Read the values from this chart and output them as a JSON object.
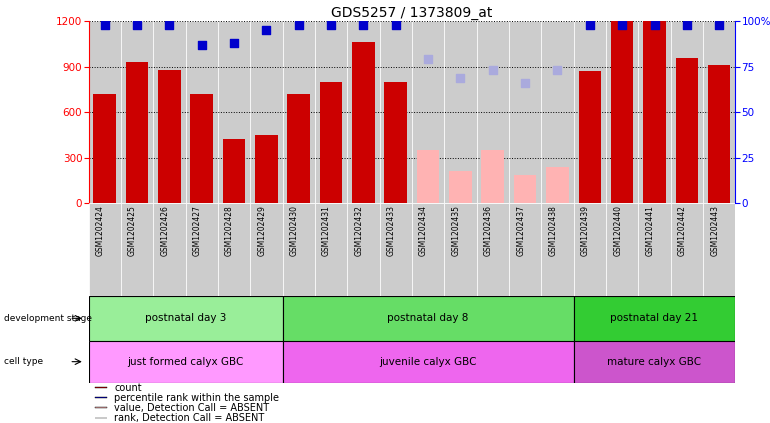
{
  "title": "GDS5257 / 1373809_at",
  "samples": [
    "GSM1202424",
    "GSM1202425",
    "GSM1202426",
    "GSM1202427",
    "GSM1202428",
    "GSM1202429",
    "GSM1202430",
    "GSM1202431",
    "GSM1202432",
    "GSM1202433",
    "GSM1202434",
    "GSM1202435",
    "GSM1202436",
    "GSM1202437",
    "GSM1202438",
    "GSM1202439",
    "GSM1202440",
    "GSM1202441",
    "GSM1202442",
    "GSM1202443"
  ],
  "counts": [
    720,
    930,
    880,
    720,
    420,
    450,
    720,
    800,
    1060,
    800,
    null,
    null,
    null,
    null,
    null,
    870,
    1200,
    1200,
    960,
    910
  ],
  "counts_absent": [
    null,
    null,
    null,
    null,
    null,
    null,
    null,
    null,
    null,
    null,
    350,
    210,
    350,
    185,
    240,
    null,
    null,
    null,
    null,
    null
  ],
  "percentile": [
    98,
    98,
    98,
    87,
    88,
    95,
    98,
    98,
    98,
    98,
    null,
    null,
    null,
    null,
    null,
    98,
    98,
    98,
    98,
    98
  ],
  "percentile_absent": [
    null,
    null,
    null,
    null,
    null,
    null,
    null,
    null,
    null,
    null,
    79,
    69,
    73,
    66,
    73,
    null,
    null,
    null,
    null,
    null
  ],
  "ylim_left": [
    0,
    1200
  ],
  "ylim_right": [
    0,
    100
  ],
  "yticks_left": [
    0,
    300,
    600,
    900,
    1200
  ],
  "yticks_right": [
    0,
    25,
    50,
    75,
    100
  ],
  "ytick_labels_right": [
    "0",
    "25",
    "50",
    "75",
    "100%"
  ],
  "bar_color": "#cc0000",
  "bar_color_absent": "#ffb3b3",
  "dot_color": "#0000cc",
  "dot_color_absent": "#aaaadd",
  "col_bg_color": "#cccccc",
  "dev_groups": [
    {
      "label": "postnatal day 3",
      "start": 0,
      "end": 6,
      "color": "#99ee99"
    },
    {
      "label": "postnatal day 8",
      "start": 6,
      "end": 15,
      "color": "#66dd66"
    },
    {
      "label": "postnatal day 21",
      "start": 15,
      "end": 20,
      "color": "#33cc33"
    }
  ],
  "cell_groups": [
    {
      "label": "just formed calyx GBC",
      "start": 0,
      "end": 6,
      "color": "#ff99ff"
    },
    {
      "label": "juvenile calyx GBC",
      "start": 6,
      "end": 15,
      "color": "#ee66ee"
    },
    {
      "label": "mature calyx GBC",
      "start": 15,
      "end": 20,
      "color": "#cc55cc"
    }
  ],
  "legend_items": [
    {
      "label": "count",
      "color": "#cc0000"
    },
    {
      "label": "percentile rank within the sample",
      "color": "#0000cc"
    },
    {
      "label": "value, Detection Call = ABSENT",
      "color": "#ffb3b3"
    },
    {
      "label": "rank, Detection Call = ABSENT",
      "color": "#aaaadd"
    }
  ],
  "bg_color": "#ffffff"
}
